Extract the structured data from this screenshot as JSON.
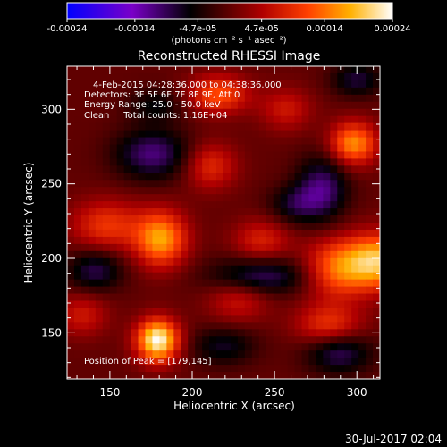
{
  "chart_data": {
    "type": "heatmap",
    "title": "Reconstructed RHESSI Image",
    "xlabel": "Heliocentric X (arcsec)",
    "ylabel": "Heliocentric Y (arcsec)",
    "xlim": [
      124,
      314
    ],
    "ylim": [
      119,
      329
    ],
    "x_ticks": [
      150,
      200,
      250,
      300
    ],
    "y_ticks": [
      150,
      200,
      250,
      300
    ],
    "colorbar": {
      "range": [
        -0.00024,
        0.00024
      ],
      "tick_values": [
        -0.00024,
        -0.00014,
        -4.7e-05,
        4.7e-05,
        0.00014,
        0.00024
      ],
      "tick_labels": [
        "-0.00024",
        "-0.00014",
        "-4.7e-05",
        "4.7e-05",
        "0.00014",
        "0.00024"
      ],
      "unit_label": "(photons cm⁻² s⁻¹ asec⁻²)",
      "colors": [
        "#0000ff",
        "#7a00c8",
        "#000000",
        "#b00000",
        "#ff4000",
        "#ffb000",
        "#ffffff"
      ]
    },
    "annotations": [
      "4-Feb-2015 04:28:36.000 to 04:38:36.000",
      "Detectors: 3F 5F 6F 7F 8F 9F, Att 0",
      "Energy Range: 25.0 - 50.0 keV",
      "Clean     Total counts: 1.16E+04"
    ],
    "peak_label": "Position of Peak = [179,145]",
    "peak": [
      179,
      145
    ],
    "hot_spots": [
      {
        "x": 179,
        "y": 145,
        "v": 0.00024,
        "sx": 9,
        "sy": 10
      },
      {
        "x": 181,
        "y": 213,
        "v": 0.00017,
        "sx": 11,
        "sy": 13
      },
      {
        "x": 313,
        "y": 198,
        "v": 0.00018,
        "sx": 13,
        "sy": 13
      },
      {
        "x": 288,
        "y": 193,
        "v": 0.00014,
        "sx": 14,
        "sy": 14
      },
      {
        "x": 298,
        "y": 277,
        "v": 0.00016,
        "sx": 10,
        "sy": 10
      },
      {
        "x": 216,
        "y": 310,
        "v": 0.00012,
        "sx": 13,
        "sy": 9
      },
      {
        "x": 148,
        "y": 222,
        "v": 0.0001,
        "sx": 15,
        "sy": 12
      },
      {
        "x": 283,
        "y": 155,
        "v": 0.0001,
        "sx": 14,
        "sy": 10
      },
      {
        "x": 211,
        "y": 262,
        "v": 9e-05,
        "sx": 11,
        "sy": 11
      },
      {
        "x": 242,
        "y": 212,
        "v": 8e-05,
        "sx": 12,
        "sy": 10
      },
      {
        "x": 133,
        "y": 162,
        "v": 7e-05,
        "sx": 11,
        "sy": 10
      },
      {
        "x": 257,
        "y": 300,
        "v": 7e-05,
        "sx": 11,
        "sy": 10
      },
      {
        "x": 228,
        "y": 172,
        "v": 7e-05,
        "sx": 13,
        "sy": 10
      }
    ],
    "cool_spots": [
      {
        "x": 176,
        "y": 270,
        "v": -0.00011,
        "sx": 16,
        "sy": 12
      },
      {
        "x": 279,
        "y": 247,
        "v": -0.00011,
        "sx": 11,
        "sy": 15
      },
      {
        "x": 242,
        "y": 188,
        "v": -0.0001,
        "sx": 22,
        "sy": 9
      },
      {
        "x": 141,
        "y": 192,
        "v": -9e-05,
        "sx": 12,
        "sy": 10
      },
      {
        "x": 289,
        "y": 137,
        "v": -0.0001,
        "sx": 14,
        "sy": 10
      },
      {
        "x": 219,
        "y": 141,
        "v": -7e-05,
        "sx": 14,
        "sy": 9
      },
      {
        "x": 300,
        "y": 320,
        "v": -8e-05,
        "sx": 11,
        "sy": 8
      },
      {
        "x": 262,
        "y": 236,
        "v": -7e-05,
        "sx": 11,
        "sy": 9
      },
      {
        "x": 178,
        "y": 303,
        "v": -6e-05,
        "sx": 12,
        "sy": 8
      }
    ]
  },
  "footer": {
    "timestamp": "30-Jul-2017 02:04"
  }
}
